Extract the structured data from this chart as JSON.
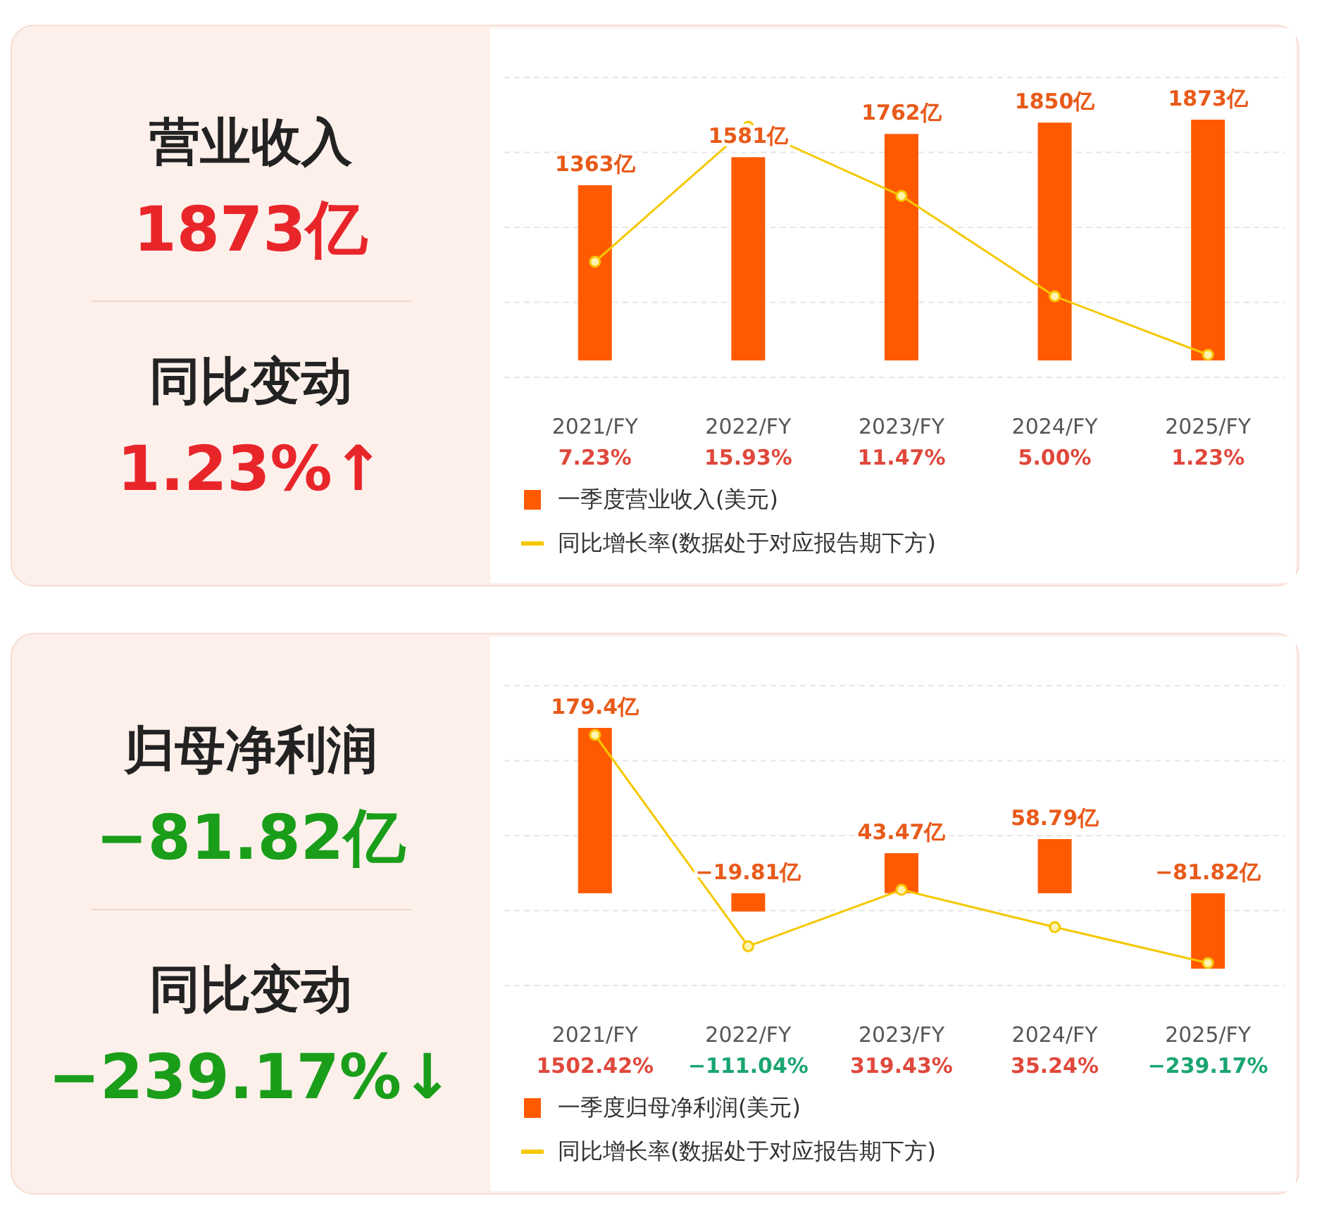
{
  "chart_data": [
    {
      "type": "other",
      "title": "营业收入",
      "annotations": [
        "1873亿",
        "同比变动",
        "1.23%↑"
      ],
      "colors": [
        "#e8262a",
        "#e8262a"
      ]
    },
    {
      "type": "bar",
      "categories": [
        "2021/FY",
        "2022/FY",
        "2023/FY",
        "2024/FY",
        "2025/FY"
      ],
      "marker": "circle",
      "grid": "y",
      "legend": "bottom",
      "series": [
        {
          "name": "一季度营业收入(美元)",
          "type": "bar",
          "color": "#ff5a00",
          "values": [
            1363,
            1581,
            1762,
            1850,
            1873
          ],
          "value_labels": [
            "1363亿",
            "1581亿",
            "1762亿",
            "1850亿",
            "1873亿"
          ]
        },
        {
          "name": "同比增长率(数据处于对应报告期下方)",
          "type": "line",
          "axis": "y2",
          "color": "#f5c800",
          "values": [
            7.23,
            15.93,
            11.47,
            5.0,
            1.23
          ],
          "value_labels": [
            "7.23%",
            "15.93%",
            "11.47%",
            "5.00%",
            "1.23%"
          ]
        }
      ]
    },
    {
      "type": "other",
      "title": "归母净利润",
      "annotations": [
        "−81.82亿",
        "同比变动",
        "−239.17%↓"
      ],
      "colors": [
        "#1a9e1a",
        "#1a9e1a"
      ]
    },
    {
      "type": "bar",
      "categories": [
        "2021/FY",
        "2022/FY",
        "2023/FY",
        "2024/FY",
        "2025/FY"
      ],
      "marker": "circle",
      "grid": "y",
      "legend": "bottom",
      "series": [
        {
          "name": "一季度归母净利润(美元)",
          "type": "bar",
          "color": "#ff5a00",
          "values": [
            179.4,
            -19.81,
            43.47,
            58.79,
            -81.82
          ],
          "value_labels": [
            "179.4亿",
            "−19.81亿",
            "43.47亿",
            "58.79亿",
            "−81.82亿"
          ]
        },
        {
          "name": "同比增长率(数据处于对应报告期下方)",
          "type": "line",
          "axis": "y2",
          "color": "#f5c800",
          "values": [
            1502.42,
            -111.04,
            319.43,
            35.24,
            -239.17
          ],
          "value_labels": [
            "1502.42%",
            "−111.04%",
            "319.43%",
            "35.24%",
            "−239.17%"
          ]
        }
      ]
    }
  ]
}
